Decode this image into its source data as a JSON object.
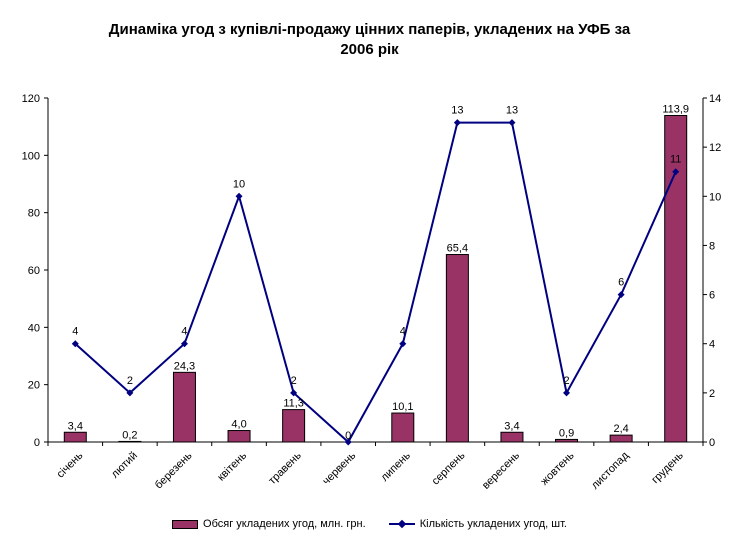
{
  "chart_data": {
    "type": "bar",
    "title_lines": [
      "Динаміка угод з купівлі-продажу цінних паперів, укладених на УФБ  за",
      "2006 рік"
    ],
    "categories": [
      "січень",
      "лютий",
      "березень",
      "квітень",
      "травень",
      "червень",
      "липень",
      "серпень",
      "вересень",
      "жовтень",
      "листопад",
      "грудень"
    ],
    "left_axis": {
      "min": 0,
      "max": 120,
      "ticks": [
        "0",
        "20",
        "40",
        "60",
        "80",
        "100",
        "120"
      ]
    },
    "right_axis": {
      "min": 0,
      "max": 14,
      "ticks": [
        "0",
        "2",
        "4",
        "6",
        "8",
        "10",
        "12",
        "14"
      ]
    },
    "series": [
      {
        "name": "Обсяг укладених угод, млн. грн.",
        "type": "bar",
        "axis": "left",
        "color": "#993366",
        "values": [
          3.4,
          0.2,
          24.3,
          4.0,
          11.3,
          0,
          10.1,
          65.4,
          3.4,
          0.9,
          2.4,
          113.9
        ],
        "labels": [
          "3,4",
          "0,2",
          "24,3",
          "4,0",
          "11,3",
          "0",
          "10,1",
          "65,4",
          "3,4",
          "0,9",
          "2,4",
          "113,9"
        ]
      },
      {
        "name": "Кількість укладених угод, шт.",
        "type": "line",
        "axis": "right",
        "color": "#000080",
        "values": [
          4,
          2,
          4,
          10,
          2,
          0,
          4,
          13,
          13,
          2,
          6,
          11
        ],
        "labels": [
          "4",
          "2",
          "4",
          "10",
          "2",
          "",
          "4",
          "13",
          "13",
          "2",
          "6",
          "11"
        ]
      }
    ],
    "grid": false,
    "legend_position": "bottom"
  }
}
